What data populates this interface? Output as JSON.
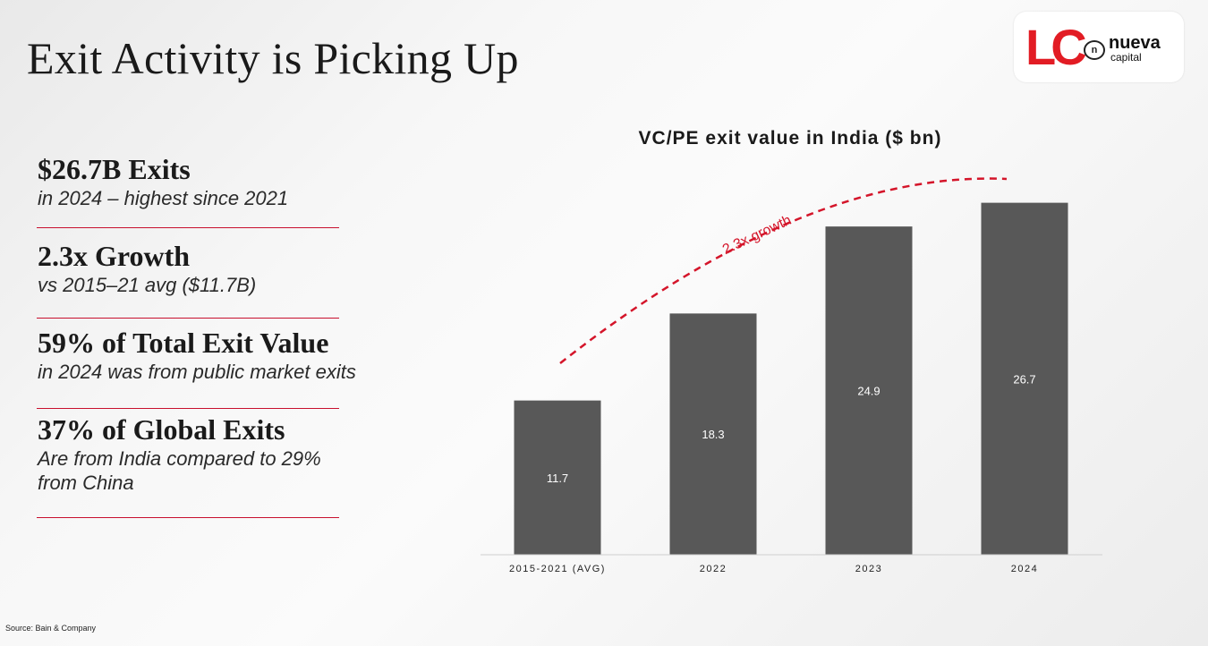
{
  "slide": {
    "title": "Exit Activity is Picking Up",
    "source": "Source: Bain & Company"
  },
  "logo": {
    "mark": "LC",
    "badge": "n",
    "word": "nueva",
    "sub": "capital",
    "color": "#e21c24"
  },
  "stats": [
    {
      "headline": "$26.7B Exits",
      "detail": "in 2024 – highest since 2021"
    },
    {
      "headline": "2.3x Growth",
      "detail": "vs 2015–21 avg ($11.7B)"
    },
    {
      "headline": "59% of Total Exit Value",
      "detail": "in 2024 was from public market exits"
    },
    {
      "headline": "37% of Global Exits",
      "detail": "Are from India compared to 29%",
      "detail2": "from China"
    }
  ],
  "chart_data": {
    "type": "bar",
    "title": "VC/PE exit value in India ($ bn)",
    "categories": [
      "2015-2021 (AVG)",
      "2022",
      "2023",
      "2024"
    ],
    "values": [
      11.7,
      18.3,
      24.9,
      26.7
    ],
    "ylim": [
      0,
      30
    ],
    "xlabel": "",
    "ylabel": "",
    "bar_color": "#585858",
    "annotation": {
      "text": "2.3x growth",
      "color": "#d4152a",
      "style": "dashed-arc"
    }
  }
}
